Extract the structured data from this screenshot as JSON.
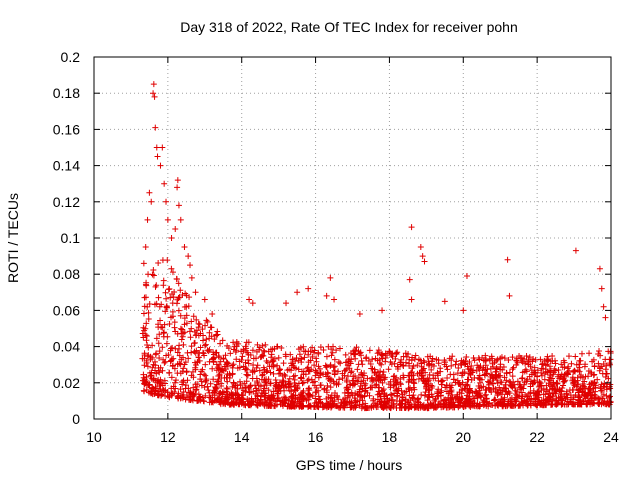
{
  "chart_data": {
    "type": "scatter",
    "title": "Day 318 of 2022, Rate Of TEC Index for receiver pohn",
    "xlabel": "GPS time / hours",
    "ylabel": "ROTI / TECUs",
    "xlim": [
      10,
      24
    ],
    "ylim": [
      0,
      0.2
    ],
    "xticks": [
      10,
      12,
      14,
      16,
      18,
      20,
      22,
      24
    ],
    "xtick_labels": [
      "10",
      "12",
      "14",
      "16",
      "18",
      "20",
      "22",
      "24"
    ],
    "yticks": [
      0,
      0.02,
      0.04,
      0.06,
      0.08,
      0.1,
      0.12,
      0.14,
      0.16,
      0.18,
      0.2
    ],
    "ytick_labels": [
      "0",
      "0.02",
      "0.04",
      "0.06",
      "0.08",
      "0.1",
      "0.12",
      "0.14",
      "0.16",
      "0.18",
      "0.2"
    ],
    "grid": true,
    "marker": "+",
    "color": "#e00000",
    "series": [
      {
        "name": "ROTI",
        "points": [
          [
            11.35,
            0.086
          ],
          [
            11.4,
            0.095
          ],
          [
            11.45,
            0.11
          ],
          [
            11.5,
            0.125
          ],
          [
            11.55,
            0.12
          ],
          [
            11.6,
            0.18
          ],
          [
            11.62,
            0.185
          ],
          [
            11.64,
            0.178
          ],
          [
            11.66,
            0.161
          ],
          [
            11.7,
            0.15
          ],
          [
            11.72,
            0.145
          ],
          [
            11.8,
            0.14
          ],
          [
            11.85,
            0.15
          ],
          [
            11.9,
            0.13
          ],
          [
            11.95,
            0.12
          ],
          [
            12.0,
            0.11
          ],
          [
            12.1,
            0.1
          ],
          [
            12.2,
            0.105
          ],
          [
            12.25,
            0.128
          ],
          [
            12.27,
            0.132
          ],
          [
            12.3,
            0.118
          ],
          [
            12.35,
            0.11
          ],
          [
            12.45,
            0.095
          ],
          [
            12.55,
            0.09
          ],
          [
            12.6,
            0.085
          ],
          [
            12.65,
            0.078
          ],
          [
            12.75,
            0.07
          ],
          [
            13.0,
            0.066
          ],
          [
            13.2,
            0.058
          ],
          [
            14.2,
            0.066
          ],
          [
            14.3,
            0.064
          ],
          [
            15.2,
            0.064
          ],
          [
            15.5,
            0.07
          ],
          [
            15.8,
            0.072
          ],
          [
            16.3,
            0.068
          ],
          [
            16.4,
            0.078
          ],
          [
            16.5,
            0.066
          ],
          [
            17.2,
            0.058
          ],
          [
            17.8,
            0.06
          ],
          [
            18.6,
            0.106
          ],
          [
            18.55,
            0.077
          ],
          [
            18.6,
            0.066
          ],
          [
            18.85,
            0.095
          ],
          [
            18.9,
            0.09
          ],
          [
            18.95,
            0.087
          ],
          [
            19.5,
            0.065
          ],
          [
            20.0,
            0.06
          ],
          [
            20.1,
            0.079
          ],
          [
            21.2,
            0.088
          ],
          [
            21.25,
            0.068
          ],
          [
            23.05,
            0.093
          ],
          [
            23.7,
            0.083
          ],
          [
            23.75,
            0.072
          ],
          [
            23.8,
            0.062
          ],
          [
            23.85,
            0.056
          ]
        ]
      }
    ],
    "band": {
      "description": "dense cloud of ROTI samples",
      "x_range": [
        11.3,
        24
      ],
      "profile": [
        {
          "x": 11.3,
          "low": 0.015,
          "high": 0.08
        },
        {
          "x": 12.0,
          "low": 0.012,
          "high": 0.09
        },
        {
          "x": 12.8,
          "low": 0.01,
          "high": 0.06
        },
        {
          "x": 13.5,
          "low": 0.008,
          "high": 0.045
        },
        {
          "x": 15.0,
          "low": 0.007,
          "high": 0.04
        },
        {
          "x": 17.0,
          "low": 0.006,
          "high": 0.04
        },
        {
          "x": 19.0,
          "low": 0.006,
          "high": 0.035
        },
        {
          "x": 21.0,
          "low": 0.007,
          "high": 0.035
        },
        {
          "x": 23.0,
          "low": 0.008,
          "high": 0.035
        },
        {
          "x": 24.0,
          "low": 0.008,
          "high": 0.04
        }
      ],
      "density": 2600
    }
  }
}
